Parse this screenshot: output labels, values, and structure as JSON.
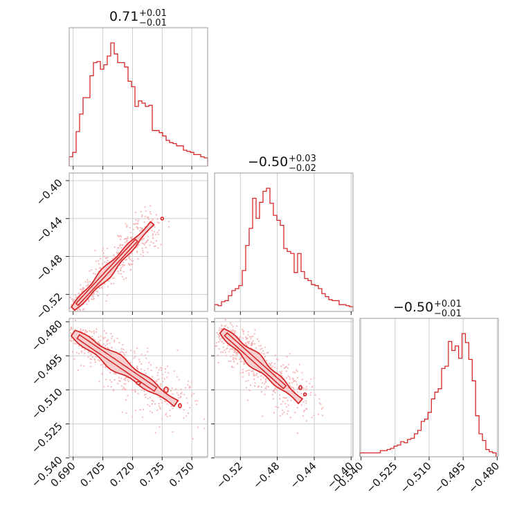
{
  "figure": {
    "type": "corner-plot",
    "color": "#d62728",
    "scatter_color": "#f4b6b6",
    "fill_color": "#f6cfd0"
  },
  "chart_data": [
    {
      "type": "histogram",
      "panel": "hist-0",
      "title": {
        "value": "0.71",
        "plus": "+0.01",
        "minus": "−0.01"
      },
      "xlim": [
        0.688,
        0.758
      ],
      "bin_edges_start": 0.688,
      "bin_width": 0.00175,
      "counts": [
        6,
        10,
        29,
        45,
        60,
        60,
        80,
        92,
        93,
        86,
        90,
        98,
        110,
        100,
        92,
        92,
        88,
        75,
        70,
        52,
        57,
        55,
        52,
        53,
        30,
        30,
        28,
        25,
        21,
        19,
        18,
        16,
        16,
        12,
        11,
        10,
        8,
        8,
        6,
        5
      ],
      "xticks": [
        "0.690",
        "0.705",
        "0.720",
        "0.735",
        "0.750"
      ],
      "xtick_values": [
        0.69,
        0.705,
        0.72,
        0.735,
        0.75
      ]
    },
    {
      "type": "scatter-contour",
      "panel": "scatter-1-0",
      "xlim": [
        0.688,
        0.758
      ],
      "ylim": [
        -0.538,
        -0.392
      ],
      "yticks": [
        "−0.40",
        "−0.44",
        "−0.48",
        "−0.52"
      ],
      "ytick_values": [
        -0.4,
        -0.44,
        -0.48,
        -0.52
      ],
      "trend": {
        "x": [
          0.69,
          0.73
        ],
        "y": [
          -0.535,
          -0.445
        ]
      }
    },
    {
      "type": "histogram",
      "panel": "hist-1",
      "title": {
        "value": "−0.50",
        "plus": "+0.03",
        "minus": "−0.02"
      },
      "xlim": [
        -0.548,
        -0.398
      ],
      "bin_edges_start": -0.548,
      "bin_width": 0.00375,
      "counts": [
        4,
        3,
        7,
        8,
        13,
        18,
        20,
        23,
        38,
        63,
        80,
        110,
        90,
        106,
        117,
        120,
        105,
        93,
        88,
        83,
        60,
        57,
        55,
        36,
        55,
        37,
        30,
        28,
        24,
        23,
        20,
        15,
        12,
        9,
        8,
        8,
        4,
        4,
        3,
        2
      ],
      "xticks": [
        "−0.52",
        "−0.48",
        "−0.44",
        "−0.40"
      ],
      "xtick_values": [
        -0.52,
        -0.48,
        -0.44,
        -0.4
      ]
    },
    {
      "type": "scatter-contour",
      "panel": "scatter-2-0",
      "xlim": [
        0.688,
        0.758
      ],
      "ylim": [
        -0.5395,
        -0.4785
      ],
      "yticks": [
        "−0.480",
        "−0.495",
        "−0.510",
        "−0.525",
        "−0.540"
      ],
      "ytick_values": [
        -0.48,
        -0.495,
        -0.51,
        -0.525,
        -0.54
      ],
      "xticks": [
        "0.690",
        "0.705",
        "0.720",
        "0.735",
        "0.750"
      ],
      "xtick_values": [
        0.69,
        0.705,
        0.72,
        0.735,
        0.75
      ],
      "trend": {
        "x": [
          0.69,
          0.742
        ],
        "y": [
          -0.485,
          -0.516
        ]
      }
    },
    {
      "type": "scatter-contour",
      "panel": "scatter-2-1",
      "xlim": [
        -0.548,
        -0.398
      ],
      "ylim": [
        -0.5395,
        -0.4785
      ],
      "xticks": [
        "−0.52",
        "−0.48",
        "−0.44",
        "−0.40"
      ],
      "xtick_values": [
        -0.52,
        -0.48,
        -0.44,
        -0.4
      ],
      "trend": {
        "x": [
          -0.54,
          -0.455
        ],
        "y": [
          -0.484,
          -0.515
        ]
      }
    },
    {
      "type": "histogram",
      "panel": "hist-2",
      "title": {
        "value": "−0.50",
        "plus": "+0.01",
        "minus": "−0.01"
      },
      "xlim": [
        -0.5405,
        -0.4795
      ],
      "bin_edges_start": -0.5405,
      "bin_width": 0.0015,
      "counts": [
        1,
        1,
        1,
        1,
        1,
        1,
        3,
        3,
        4,
        5,
        7,
        8,
        11,
        10,
        13,
        14,
        18,
        21,
        29,
        31,
        37,
        49,
        55,
        58,
        76,
        78,
        100,
        92,
        96,
        85,
        107,
        99,
        84,
        65,
        34,
        18,
        12,
        4,
        2,
        1
      ],
      "xticks": [
        "−0.540",
        "−0.525",
        "−0.510",
        "−0.495",
        "−0.480"
      ],
      "xtick_values": [
        -0.54,
        -0.525,
        -0.51,
        -0.495,
        -0.48
      ]
    }
  ]
}
